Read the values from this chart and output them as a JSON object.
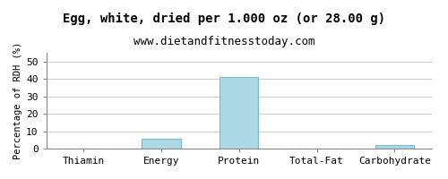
{
  "title": "Egg, white, dried per 1.000 oz (or 28.00 g)",
  "subtitle": "www.dietandfitnesstoday.com",
  "categories": [
    "Thiamin",
    "Energy",
    "Protein",
    "Total-Fat",
    "Carbohydrate"
  ],
  "values": [
    0.0,
    5.5,
    41.0,
    0.0,
    2.0
  ],
  "bar_color": "#add8e6",
  "bar_edge_color": "#7bbccc",
  "ylabel": "Percentage of RDH (%)",
  "ylim": [
    0,
    55
  ],
  "yticks": [
    0,
    10,
    20,
    30,
    40,
    50
  ],
  "background_color": "#ffffff",
  "plot_bg_color": "#ffffff",
  "grid_color": "#cccccc",
  "title_fontsize": 10,
  "subtitle_fontsize": 9,
  "ylabel_fontsize": 7.5,
  "tick_fontsize": 8
}
